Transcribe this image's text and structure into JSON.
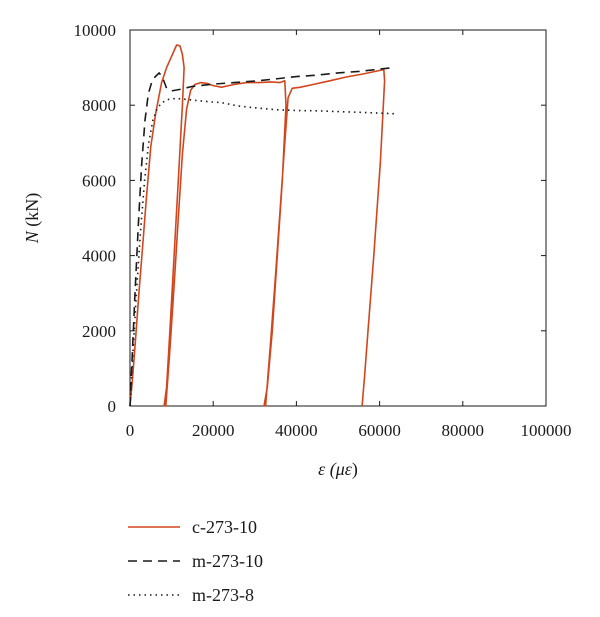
{
  "chart_data": {
    "type": "line",
    "xlabel_parts": [
      "ε (",
      "με",
      ")"
    ],
    "ylabel_parts": [
      "N",
      " (kN)"
    ],
    "xlim": [
      0,
      100000
    ],
    "ylim": [
      0,
      10000
    ],
    "xticks": [
      0,
      20000,
      40000,
      60000,
      80000,
      100000
    ],
    "yticks": [
      0,
      2000,
      4000,
      6000,
      8000,
      10000
    ],
    "grid": false,
    "legend_position": "below",
    "series": [
      {
        "name": "c-273-10",
        "style": "solid",
        "color": "#d2461e",
        "points": [
          [
            0,
            0
          ],
          [
            500,
            600
          ],
          [
            1000,
            1300
          ],
          [
            1600,
            2200
          ],
          [
            2200,
            3100
          ],
          [
            3000,
            4200
          ],
          [
            4000,
            5600
          ],
          [
            5000,
            6900
          ],
          [
            6200,
            7800
          ],
          [
            7600,
            8600
          ],
          [
            8800,
            9000
          ],
          [
            10000,
            9300
          ],
          [
            11200,
            9600
          ],
          [
            12000,
            9580
          ],
          [
            12600,
            9350
          ],
          [
            13000,
            9000
          ],
          [
            12600,
            8000
          ],
          [
            11600,
            6000
          ],
          [
            10600,
            4000
          ],
          [
            9600,
            2000
          ],
          [
            8800,
            500
          ],
          [
            8200,
            0
          ],
          [
            8600,
            0
          ],
          [
            9600,
            1500
          ],
          [
            10600,
            3200
          ],
          [
            11600,
            5000
          ],
          [
            12600,
            6700
          ],
          [
            13600,
            7900
          ],
          [
            14600,
            8400
          ],
          [
            15600,
            8550
          ],
          [
            17000,
            8600
          ],
          [
            18500,
            8580
          ],
          [
            20000,
            8520
          ],
          [
            22000,
            8480
          ],
          [
            25000,
            8550
          ],
          [
            28000,
            8600
          ],
          [
            31000,
            8600
          ],
          [
            34000,
            8620
          ],
          [
            36000,
            8600
          ],
          [
            37200,
            8650
          ],
          [
            37500,
            8000
          ],
          [
            36600,
            6000
          ],
          [
            35400,
            4000
          ],
          [
            34200,
            2000
          ],
          [
            33000,
            500
          ],
          [
            32200,
            0
          ],
          [
            32600,
            0
          ],
          [
            33800,
            1700
          ],
          [
            35000,
            3500
          ],
          [
            36200,
            5400
          ],
          [
            37200,
            7000
          ],
          [
            38000,
            8200
          ],
          [
            39000,
            8450
          ],
          [
            41000,
            8480
          ],
          [
            44000,
            8550
          ],
          [
            48000,
            8650
          ],
          [
            52000,
            8750
          ],
          [
            56000,
            8830
          ],
          [
            59000,
            8900
          ],
          [
            61000,
            8950
          ],
          [
            61200,
            8650
          ],
          [
            60200,
            6500
          ],
          [
            58600,
            4000
          ],
          [
            57200,
            2000
          ],
          [
            56400,
            800
          ],
          [
            55800,
            0
          ]
        ]
      },
      {
        "name": "m-273-10",
        "style": "dashed",
        "color": "#1a1a1a",
        "points": [
          [
            0,
            0
          ],
          [
            600,
            1500
          ],
          [
            1200,
            3000
          ],
          [
            2000,
            4800
          ],
          [
            2800,
            6400
          ],
          [
            3600,
            7600
          ],
          [
            4400,
            8300
          ],
          [
            5200,
            8600
          ],
          [
            6000,
            8750
          ],
          [
            7000,
            8860
          ],
          [
            7800,
            8750
          ],
          [
            8800,
            8450
          ],
          [
            10000,
            8380
          ],
          [
            12000,
            8420
          ],
          [
            15000,
            8500
          ],
          [
            20000,
            8560
          ],
          [
            25000,
            8600
          ],
          [
            30000,
            8640
          ],
          [
            35000,
            8700
          ],
          [
            40000,
            8760
          ],
          [
            45000,
            8800
          ],
          [
            50000,
            8860
          ],
          [
            55000,
            8900
          ],
          [
            60000,
            8960
          ],
          [
            62500,
            8990
          ]
        ]
      },
      {
        "name": "m-273-8",
        "style": "dotted",
        "color": "#1a1a1a",
        "points": [
          [
            0,
            0
          ],
          [
            700,
            1400
          ],
          [
            1500,
            2900
          ],
          [
            2500,
            4600
          ],
          [
            3500,
            6000
          ],
          [
            4500,
            7000
          ],
          [
            5500,
            7600
          ],
          [
            6500,
            7900
          ],
          [
            7500,
            8050
          ],
          [
            9000,
            8150
          ],
          [
            11000,
            8180
          ],
          [
            14000,
            8150
          ],
          [
            18000,
            8100
          ],
          [
            22000,
            8070
          ],
          [
            26000,
            7980
          ],
          [
            30000,
            7930
          ],
          [
            35000,
            7880
          ],
          [
            40000,
            7860
          ],
          [
            45000,
            7850
          ],
          [
            50000,
            7830
          ],
          [
            55000,
            7810
          ],
          [
            60000,
            7790
          ],
          [
            64000,
            7770
          ]
        ]
      }
    ]
  }
}
